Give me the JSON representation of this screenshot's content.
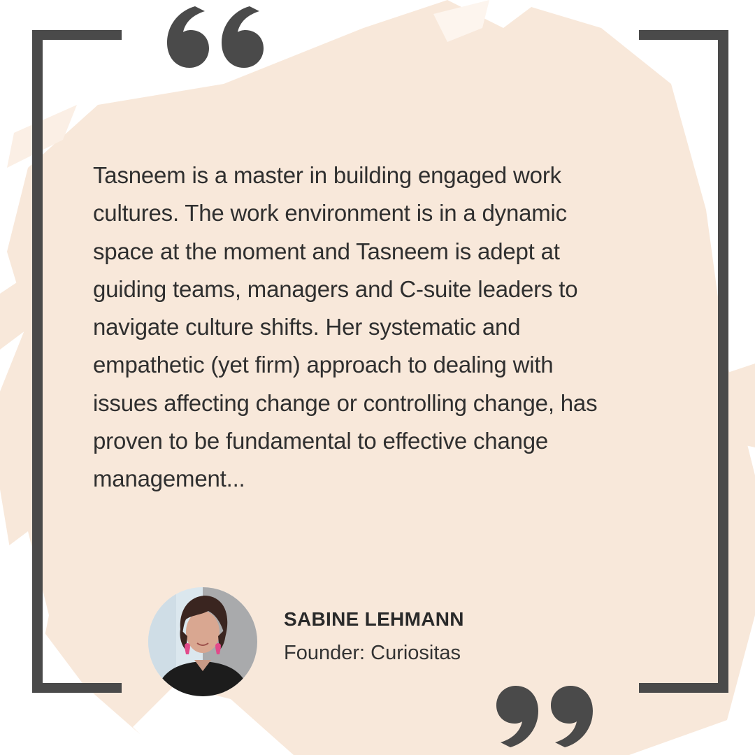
{
  "colors": {
    "background": "#ffffff",
    "brush": "#f8e8da",
    "bracket": "#4a4a4a",
    "text": "#2f2f2f"
  },
  "quote": {
    "lines": [
      "Tasneem is a master in building engaged work",
      "cultures. The work environment is in a dynamic",
      "space at the moment and Tasneem is adept at",
      "guiding teams, managers and C-suite leaders to",
      "navigate culture shifts. Her systematic and",
      "empathetic (yet firm) approach to dealing with",
      "issues affecting change or controlling change, has",
      "proven to be fundamental to effective change",
      "management..."
    ]
  },
  "author": {
    "name": "SABINE LEHMANN",
    "role": "Founder: Curiositas"
  },
  "icons": {
    "open_quote": "open-quote-icon",
    "close_quote": "close-quote-icon"
  }
}
